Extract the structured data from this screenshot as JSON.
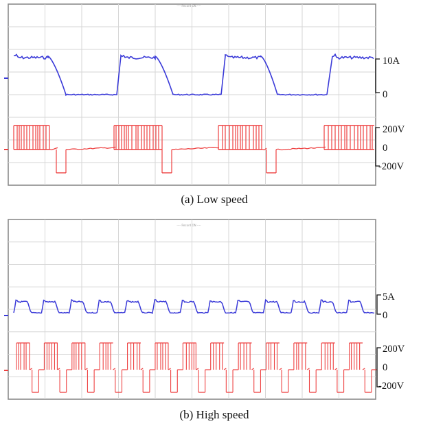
{
  "chart_data": [
    {
      "type": "line",
      "panel": "(a) Low speed",
      "caption": "(a)  Low  speed",
      "header": "---- Record ON ----",
      "series": [
        {
          "color": "#3a3ad8",
          "amplitude": "10A",
          "values": [
            10,
            10,
            0,
            0,
            10,
            10,
            0,
            0,
            10,
            10,
            0,
            0,
            10
          ]
        },
        {
          "color": "#ee4040",
          "amplitude": "200V",
          "values": [
            200,
            200,
            0,
            -200,
            0,
            0,
            200,
            200,
            0,
            -200,
            0,
            200,
            200
          ]
        }
      ],
      "scale_labels": {
        "current": [
          "10A",
          "0"
        ],
        "voltage": [
          "200V",
          "0",
          "-200V"
        ]
      },
      "grid": true
    },
    {
      "type": "line",
      "panel": "(b) High speed",
      "caption": "(b)  High  speed",
      "header": "---- Record ON ----",
      "series": [
        {
          "color": "#3a3ad8",
          "amplitude": "5A",
          "periods": 13
        },
        {
          "color": "#ee4040",
          "amplitude": "200V",
          "periods": 13
        }
      ],
      "scale_labels": {
        "current": [
          "5A",
          "0"
        ],
        "voltage": [
          "200V",
          "0",
          "-200V"
        ]
      },
      "grid": true
    }
  ],
  "colors": {
    "current": "#3a3ad8",
    "voltage": "#ee4040",
    "grid": "#d6d6d6",
    "frame": "#8a8a8a"
  }
}
